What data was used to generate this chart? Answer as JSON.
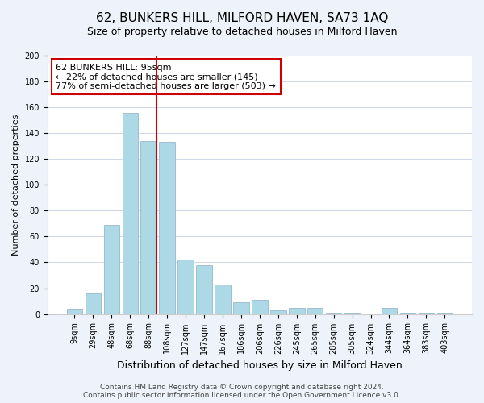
{
  "title": "62, BUNKERS HILL, MILFORD HAVEN, SA73 1AQ",
  "subtitle": "Size of property relative to detached houses in Milford Haven",
  "xlabel": "Distribution of detached houses by size in Milford Haven",
  "ylabel": "Number of detached properties",
  "bar_labels": [
    "9sqm",
    "29sqm",
    "48sqm",
    "68sqm",
    "88sqm",
    "108sqm",
    "127sqm",
    "147sqm",
    "167sqm",
    "186sqm",
    "206sqm",
    "226sqm",
    "245sqm",
    "265sqm",
    "285sqm",
    "305sqm",
    "324sqm",
    "344sqm",
    "364sqm",
    "383sqm",
    "403sqm"
  ],
  "bar_values": [
    4,
    16,
    69,
    156,
    134,
    133,
    42,
    38,
    23,
    9,
    11,
    3,
    5,
    5,
    1,
    1,
    0,
    5,
    1,
    1,
    1
  ],
  "bar_color": "#add8e6",
  "bar_edge_color": "#8ab0c8",
  "vline_x_index": 4,
  "vline_color": "#cc0000",
  "annotation_title": "62 BUNKERS HILL: 95sqm",
  "annotation_line1": "← 22% of detached houses are smaller (145)",
  "annotation_line2": "77% of semi-detached houses are larger (503) →",
  "annotation_box_color": "#ffffff",
  "annotation_box_edge": "#cc0000",
  "ylim": [
    0,
    200
  ],
  "yticks": [
    0,
    20,
    40,
    60,
    80,
    100,
    120,
    140,
    160,
    180,
    200
  ],
  "footer1": "Contains HM Land Registry data © Crown copyright and database right 2024.",
  "footer2": "Contains public sector information licensed under the Open Government Licence v3.0.",
  "bg_color": "#eef2fa",
  "plot_bg_color": "#ffffff",
  "title_fontsize": 11,
  "subtitle_fontsize": 9,
  "xlabel_fontsize": 9,
  "ylabel_fontsize": 8,
  "tick_fontsize": 7,
  "annotation_fontsize": 8,
  "footer_fontsize": 6.5
}
